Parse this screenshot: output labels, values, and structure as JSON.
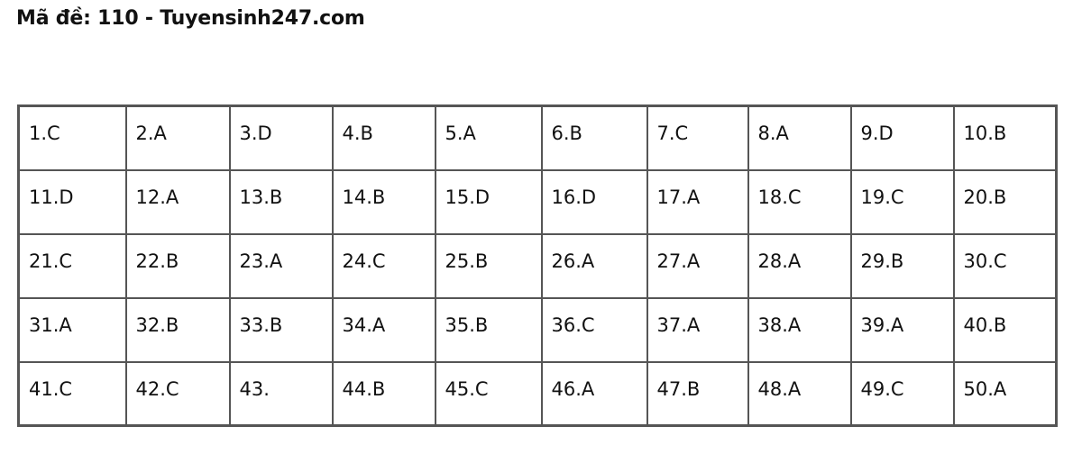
{
  "title": "Mã đề: 110 - Tuyensinh247.com",
  "answers": [
    [
      "1.C",
      "2.A",
      "3.D",
      "4.B",
      "5.A",
      "6.B",
      "7.C",
      "8.A",
      "9.D",
      "10.B"
    ],
    [
      "11.D",
      "12.A",
      "13.B",
      "14.B",
      "15.D",
      "16.D",
      "17.A",
      "18.C",
      "19.C",
      "20.B"
    ],
    [
      "21.C",
      "22.B",
      "23.A",
      "24.C",
      "25.B",
      "26.A",
      "27.A",
      "28.A",
      "29.B",
      "30.C"
    ],
    [
      "31.A",
      "32.B",
      "33.B",
      "34.A",
      "35.B",
      "36.C",
      "37.A",
      "38.A",
      "39.A",
      "40.B"
    ],
    [
      "41.C",
      "42.C",
      "43.",
      "44.B",
      "45.C",
      "46.A",
      "47.B",
      "48.A",
      "49.C",
      "50.A"
    ]
  ]
}
